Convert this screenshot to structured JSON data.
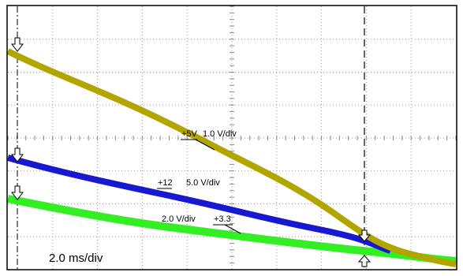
{
  "labels": {
    "ch1_offset": "+5V",
    "ch1_scale": "1.0 V/div",
    "ch2_offset": "+12",
    "ch2_scale": "5.0 V/div",
    "ch3_scale": "2.0 V/div",
    "ch3_offset": "+3.3",
    "timebase": "2.0 ms/div"
  }
}
